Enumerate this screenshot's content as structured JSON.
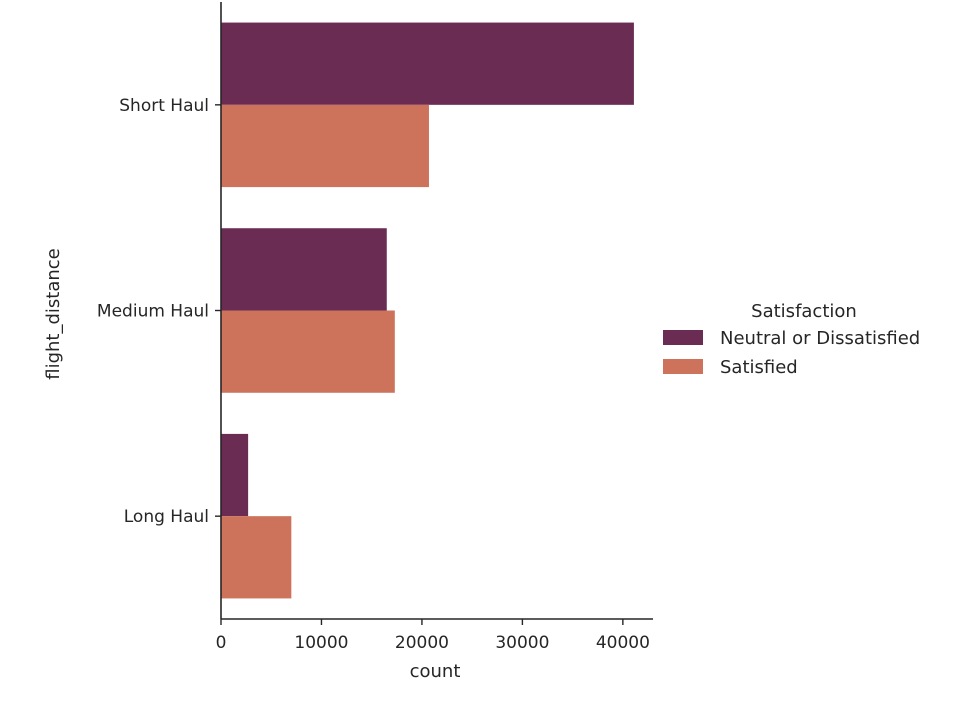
{
  "chart_data": {
    "type": "bar",
    "orientation": "horizontal",
    "categories": [
      "Short Haul",
      "Medium Haul",
      "Long Haul"
    ],
    "series": [
      {
        "name": "Neutral or Dissatisfied",
        "values": [
          41100,
          16500,
          2700
        ],
        "color": "#6b2c54"
      },
      {
        "name": "Satisfied",
        "values": [
          20700,
          17300,
          7000
        ],
        "color": "#cd725b"
      }
    ],
    "xlabel": "count",
    "ylabel": "flight_distance",
    "xlim": [
      0,
      43000
    ],
    "xticks": [
      0,
      10000,
      20000,
      30000,
      40000
    ],
    "legend_title": "Satisfaction",
    "legend_position": "right",
    "grid": false
  }
}
